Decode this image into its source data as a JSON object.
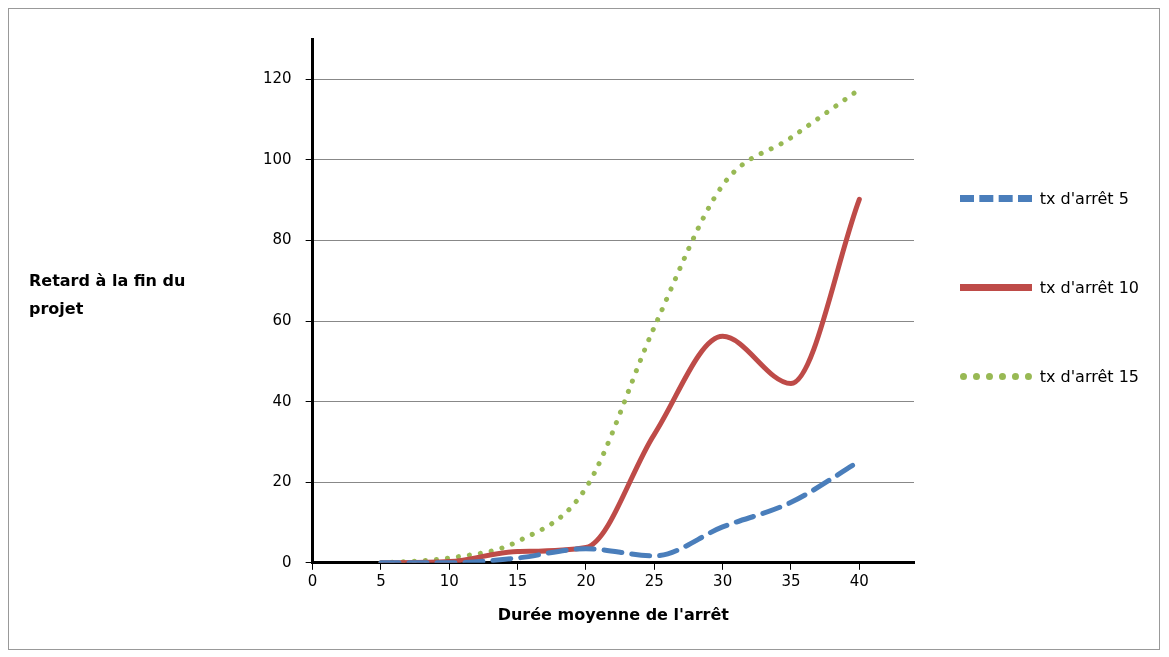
{
  "chart_data": {
    "type": "line",
    "xlabel": "Durée moyenne de l'arrêt",
    "ylabel": "Retard à la fin du projet",
    "x": [
      5,
      10,
      15,
      20,
      25,
      30,
      35,
      40
    ],
    "series": [
      {
        "name": "tx d'arrêt 5",
        "color": "#4a7ebb",
        "line_style": "dashed",
        "values": [
          0,
          0,
          1.2,
          3.5,
          1.7,
          8.9,
          15,
          25.2
        ]
      },
      {
        "name": "tx d'arrêt 10",
        "color": "#be4b48",
        "line_style": "solid",
        "values": [
          0,
          0.3,
          2.8,
          3.8,
          31.9,
          56.2,
          44.5,
          90.2
        ]
      },
      {
        "name": "tx  d'arrêt 15",
        "color": "#98b954",
        "line_style": "dotted",
        "values": [
          0,
          1.2,
          5.3,
          18.6,
          58.5,
          93.7,
          105.5,
          117.5
        ]
      }
    ],
    "xlim": [
      0,
      44
    ],
    "xticks": [
      0,
      5,
      10,
      15,
      20,
      25,
      30,
      35,
      40
    ],
    "ylim": [
      0,
      130
    ],
    "yticks": [
      0,
      20,
      40,
      60,
      80,
      100,
      120
    ],
    "grid": "y",
    "legend": "right",
    "marker": "none"
  }
}
